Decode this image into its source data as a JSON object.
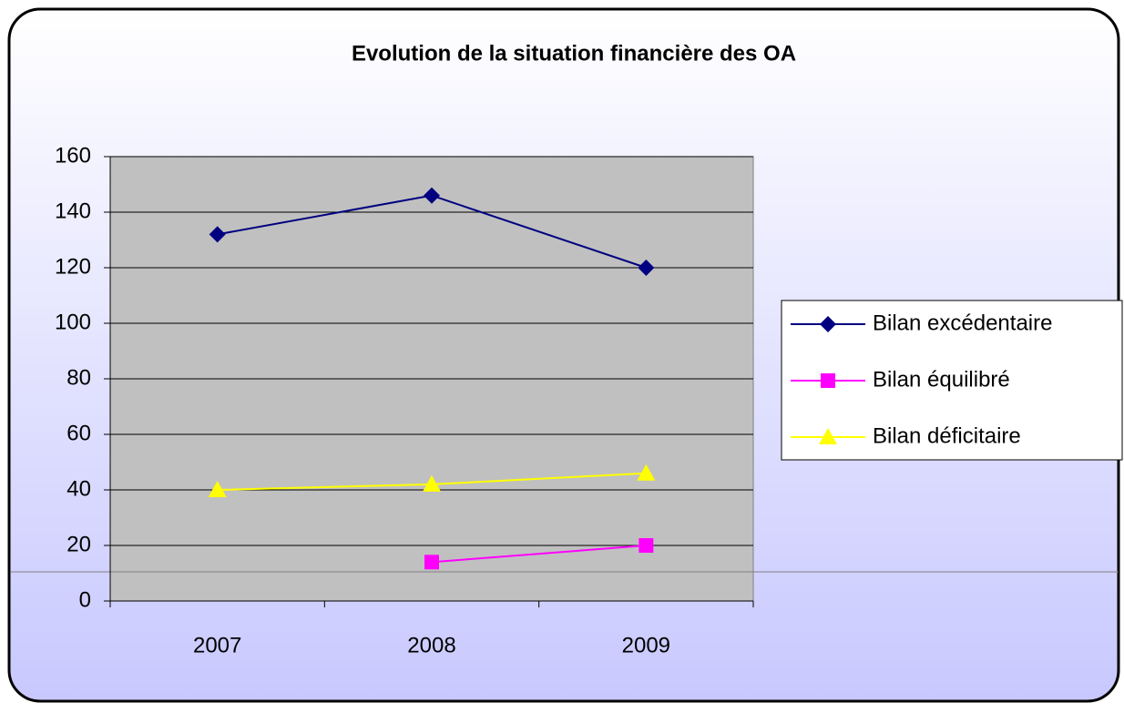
{
  "chart_data": {
    "type": "line",
    "title": "Evolution de la situation financière des OA",
    "categories": [
      "2007",
      "2008",
      "2009"
    ],
    "series": [
      {
        "name": "Bilan excédentaire",
        "color": "#000080",
        "marker": "diamond",
        "values": [
          132,
          146,
          120
        ]
      },
      {
        "name": "Bilan équilibré",
        "color": "#ff00ff",
        "marker": "square",
        "values": [
          null,
          14,
          20
        ]
      },
      {
        "name": "Bilan déficitaire",
        "color": "#ffff00",
        "marker": "triangle",
        "values": [
          40,
          42,
          46
        ]
      }
    ],
    "ylim": [
      0,
      160
    ],
    "yticks": [
      0,
      20,
      40,
      60,
      80,
      100,
      120,
      140,
      160
    ],
    "grid": true,
    "legend": "right"
  }
}
